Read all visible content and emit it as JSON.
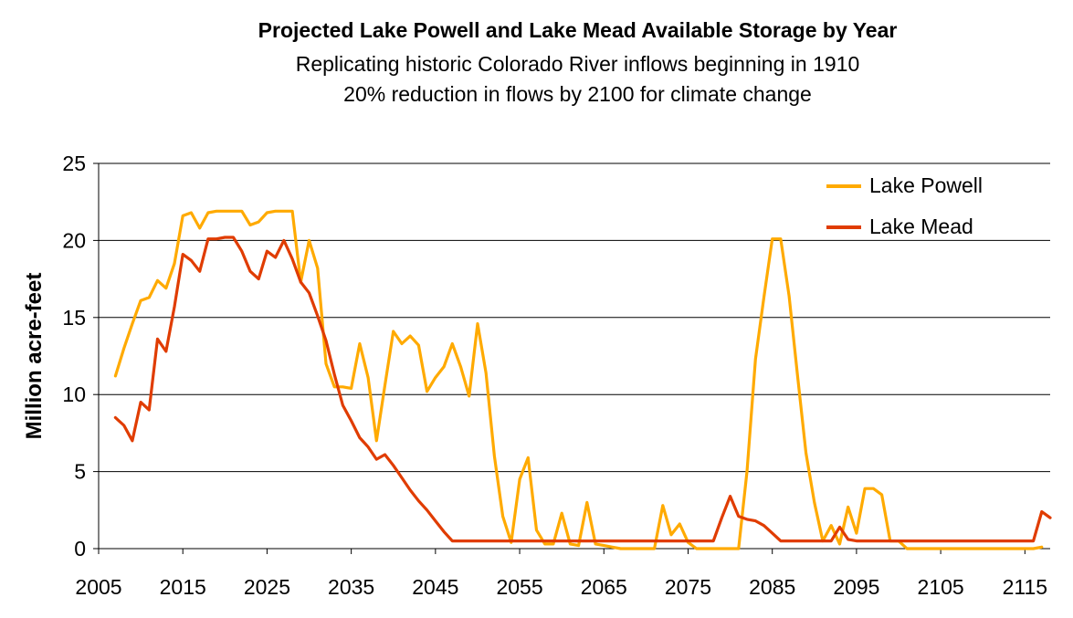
{
  "chart_data": {
    "type": "line",
    "title": "Projected Lake Powell and Lake Mead Available Storage by Year",
    "subtitle": [
      "Replicating historic Colorado River inflows beginning in 1910",
      "20% reduction in flows by 2100 for climate change"
    ],
    "xlabel": "",
    "ylabel": "Million acre-feet",
    "xlim": [
      2005,
      2118
    ],
    "ylim": [
      0,
      25
    ],
    "x_ticks": [
      2005,
      2015,
      2025,
      2035,
      2045,
      2055,
      2065,
      2075,
      2085,
      2095,
      2105,
      2115
    ],
    "y_ticks": [
      0,
      5,
      10,
      15,
      20,
      25
    ],
    "grid": "horizontal",
    "legend_position": "top-right",
    "x_start": 2007,
    "series": [
      {
        "name": "Lake  Powell",
        "color": "#FFAA00",
        "values": [
          11.2,
          13.0,
          14.6,
          16.1,
          16.3,
          17.4,
          16.9,
          18.5,
          21.6,
          21.8,
          20.8,
          21.8,
          21.9,
          21.9,
          21.9,
          21.9,
          21.0,
          21.2,
          21.8,
          21.9,
          21.9,
          21.9,
          17.3,
          20.0,
          18.2,
          12.0,
          10.5,
          10.5,
          10.4,
          13.3,
          11.1,
          7.0,
          10.6,
          14.1,
          13.3,
          13.8,
          13.2,
          10.2,
          11.1,
          11.8,
          13.3,
          11.8,
          9.9,
          14.6,
          11.4,
          6.0,
          2.1,
          0.4,
          4.5,
          5.9,
          1.2,
          0.3,
          0.3,
          2.3,
          0.3,
          0.2,
          3.0,
          0.3,
          0.2,
          0.1,
          0.0,
          0.0,
          0.0,
          0.0,
          0.0,
          2.8,
          0.9,
          1.6,
          0.4,
          0.0,
          0.0,
          0.0,
          0.0,
          0.0,
          0.0,
          5.0,
          12.3,
          16.3,
          20.1,
          20.1,
          16.4,
          11.2,
          6.2,
          3.0,
          0.5,
          1.5,
          0.3,
          2.7,
          1.0,
          3.9,
          3.9,
          3.5,
          0.5,
          0.5,
          0.0,
          0.0,
          0.0,
          0.0,
          0.0,
          0.0,
          0.0,
          0.0,
          0.0,
          0.0,
          0.0,
          0.0,
          0.0,
          0.0,
          0.0,
          0.0,
          0.1
        ]
      },
      {
        "name": "Lake  Mead",
        "color": "#E03C00",
        "values": [
          8.5,
          8.0,
          7.0,
          9.5,
          9.0,
          13.6,
          12.8,
          15.7,
          19.1,
          18.7,
          18.0,
          20.1,
          20.1,
          20.2,
          20.2,
          19.3,
          18.0,
          17.5,
          19.3,
          18.9,
          20.0,
          18.8,
          17.3,
          16.6,
          15.1,
          13.5,
          11.3,
          9.3,
          8.3,
          7.2,
          6.6,
          5.8,
          6.1,
          5.4,
          4.6,
          3.8,
          3.1,
          2.5,
          1.8,
          1.1,
          0.5,
          0.5,
          0.5,
          0.5,
          0.5,
          0.5,
          0.5,
          0.5,
          0.5,
          0.5,
          0.5,
          0.5,
          0.5,
          0.5,
          0.5,
          0.5,
          0.5,
          0.5,
          0.5,
          0.5,
          0.5,
          0.5,
          0.5,
          0.5,
          0.5,
          0.5,
          0.5,
          0.5,
          0.5,
          0.5,
          0.5,
          0.5,
          2.0,
          3.4,
          2.1,
          1.9,
          1.8,
          1.5,
          1.0,
          0.5,
          0.5,
          0.5,
          0.5,
          0.5,
          0.5,
          0.5,
          1.4,
          0.6,
          0.5,
          0.5,
          0.5,
          0.5,
          0.5,
          0.5,
          0.5,
          0.5,
          0.5,
          0.5,
          0.5,
          0.5,
          0.5,
          0.5,
          0.5,
          0.5,
          0.5,
          0.5,
          0.5,
          0.5,
          0.5,
          0.5,
          2.4,
          2.0
        ]
      }
    ]
  }
}
